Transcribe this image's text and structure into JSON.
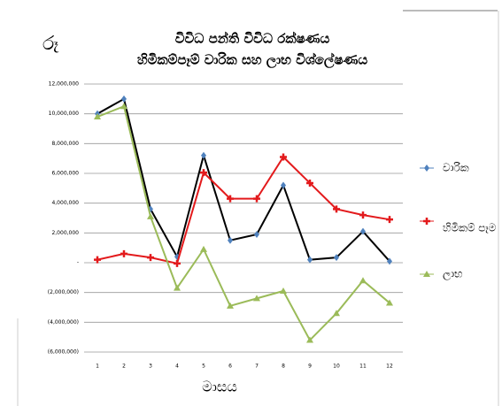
{
  "chart_data": {
    "type": "line",
    "figure_label": "රූ",
    "title": "විවිධ පන්ති විවිධ රක්ෂණය",
    "subtitle": "හිමිකම්පෑම් වාරික සහ ලාභ විශ්ලේෂණය",
    "x_label": "මාසය",
    "categories": [
      "1",
      "2",
      "3",
      "4",
      "5",
      "6",
      "7",
      "8",
      "9",
      "10",
      "11",
      "12"
    ],
    "series": [
      {
        "name": "වාරික",
        "color": "#000000",
        "marker_color": "#4f81bd",
        "marker": "diamond",
        "values": [
          10000000,
          11000000,
          3600000,
          400000,
          7200000,
          1500000,
          1900000,
          5200000,
          200000,
          350000,
          2100000,
          100000
        ]
      },
      {
        "name": "හිමිකම් පෑම",
        "color": "#e31a1c",
        "marker_color": "#e31a1c",
        "marker": "plus",
        "values": [
          200000,
          600000,
          350000,
          -50000,
          6050000,
          4300000,
          4300000,
          7100000,
          5350000,
          3600000,
          3200000,
          2900000
        ]
      },
      {
        "name": "ලාභ",
        "color": "#9bbb59",
        "marker_color": "#9bbb59",
        "marker": "triangle",
        "values": [
          9800000,
          10500000,
          3100000,
          -1700000,
          900000,
          -2900000,
          -2400000,
          -1900000,
          -5200000,
          -3400000,
          -1200000,
          -2700000
        ]
      }
    ],
    "ylim": [
      -6000000,
      12000000
    ],
    "yticks": [
      {
        "value": -6000000,
        "label": "(6,000,000)"
      },
      {
        "value": -4000000,
        "label": "(4,000,000)"
      },
      {
        "value": -2000000,
        "label": "(2,000,000)"
      },
      {
        "value": 0,
        "label": "-"
      },
      {
        "value": 2000000,
        "label": "2,000,000"
      },
      {
        "value": 4000000,
        "label": "4,000,000"
      },
      {
        "value": 6000000,
        "label": "6,000,000"
      },
      {
        "value": 8000000,
        "label": "8,000,000"
      },
      {
        "value": 10000000,
        "label": "10,000,000"
      },
      {
        "value": 12000000,
        "label": "12,000,000"
      }
    ],
    "grid": true,
    "legend": "right"
  }
}
